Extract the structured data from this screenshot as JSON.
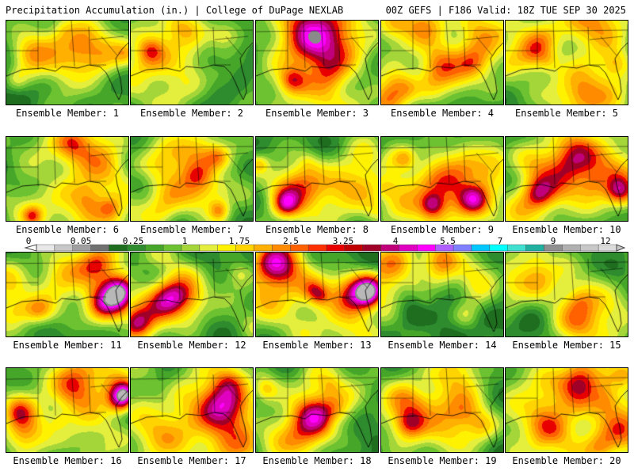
{
  "header": {
    "left": "Precipitation Accumulation (in.) | College of DuPage NEXLAB",
    "right": "00Z GEFS | F186 Valid: 18Z TUE SEP 30 2025"
  },
  "panels": [
    {
      "caption": "Ensemble Member: 1"
    },
    {
      "caption": "Ensemble Member: 2"
    },
    {
      "caption": "Ensemble Member: 3"
    },
    {
      "caption": "Ensemble Member: 4"
    },
    {
      "caption": "Ensemble Member: 5"
    },
    {
      "caption": "Ensemble Member: 6"
    },
    {
      "caption": "Ensemble Member: 7"
    },
    {
      "caption": "Ensemble Member: 8"
    },
    {
      "caption": "Ensemble Member: 9"
    },
    {
      "caption": "Ensemble Member: 10"
    },
    {
      "caption": "Ensemble Member: 11"
    },
    {
      "caption": "Ensemble Member: 12"
    },
    {
      "caption": "Ensemble Member: 13"
    },
    {
      "caption": "Ensemble Member: 14"
    },
    {
      "caption": "Ensemble Member: 15"
    },
    {
      "caption": "Ensemble Member: 16"
    },
    {
      "caption": "Ensemble Member: 17"
    },
    {
      "caption": "Ensemble Member: 18"
    },
    {
      "caption": "Ensemble Member: 19"
    },
    {
      "caption": "Ensemble Member: 20"
    }
  ],
  "colorbar": {
    "labels": [
      "0",
      "0.05",
      "0.25",
      "1",
      "1.75",
      "2.5",
      "3.25",
      "4",
      "5.5",
      "7",
      "9",
      "12"
    ],
    "colors": [
      "#e8e8e8",
      "#c8c8c8",
      "#a0a0a0",
      "#707070",
      "#1f6e1f",
      "#2e8b2e",
      "#46a62a",
      "#6cc230",
      "#a4d63a",
      "#e4ee3c",
      "#fff200",
      "#ffd400",
      "#ffb000",
      "#ff8c00",
      "#ff6000",
      "#ff3000",
      "#e80000",
      "#c00000",
      "#a00028",
      "#c0007a",
      "#e000c0",
      "#ff00ff",
      "#b060ff",
      "#8080ff",
      "#00c8ff",
      "#00ffff",
      "#40e0d0",
      "#20b0a0",
      "#909090",
      "#b0b0b0",
      "#c8c8c8",
      "#dcdcdc"
    ]
  }
}
